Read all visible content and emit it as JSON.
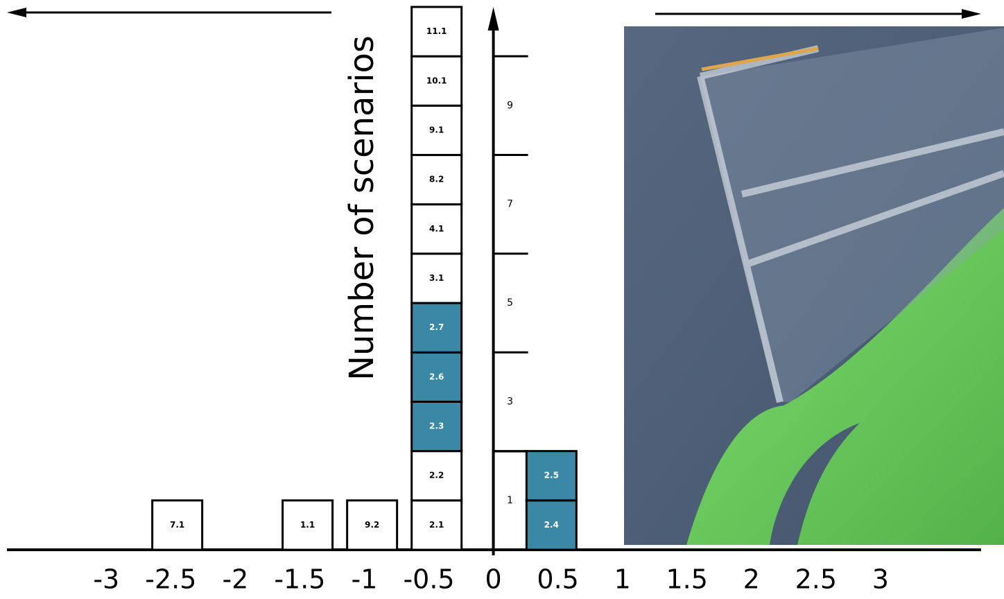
{
  "chart_data": {
    "type": "box-stack",
    "ylabel": "Number of scenarios",
    "xlim": [
      -3.77,
      3.78
    ],
    "ylim": [
      0,
      11
    ],
    "xticks": [
      -3,
      -2.5,
      -2,
      -1.5,
      -1,
      -0.5,
      0,
      0.5,
      1,
      1.5,
      2,
      2.5,
      3
    ],
    "yticks": [
      1,
      3,
      5,
      7,
      9
    ],
    "ylines": [
      2,
      4,
      6,
      8,
      10
    ],
    "color": "#ffffff",
    "highlight_color": "#3a87a6",
    "boxes": [
      {
        "label": "7.1",
        "x": -2.45,
        "level": 1,
        "highlight": false
      },
      {
        "label": "1.1",
        "x": -1.44,
        "level": 1,
        "highlight": false
      },
      {
        "label": "9.2",
        "x": -0.94,
        "level": 1,
        "highlight": false
      },
      {
        "label": "2.1",
        "x": -0.44,
        "level": 1,
        "highlight": false
      },
      {
        "label": "2.2",
        "x": -0.44,
        "level": 2,
        "highlight": false
      },
      {
        "label": "2.3",
        "x": -0.44,
        "level": 3,
        "highlight": true
      },
      {
        "label": "2.6",
        "x": -0.44,
        "level": 4,
        "highlight": true
      },
      {
        "label": "2.7",
        "x": -0.44,
        "level": 5,
        "highlight": true
      },
      {
        "label": "3.1",
        "x": -0.44,
        "level": 6,
        "highlight": false
      },
      {
        "label": "4.1",
        "x": -0.44,
        "level": 7,
        "highlight": false
      },
      {
        "label": "8.2",
        "x": -0.44,
        "level": 8,
        "highlight": false
      },
      {
        "label": "9.1",
        "x": -0.44,
        "level": 9,
        "highlight": false
      },
      {
        "label": "10.1",
        "x": -0.44,
        "level": 10,
        "highlight": false
      },
      {
        "label": "11.1",
        "x": -0.44,
        "level": 11,
        "highlight": false
      },
      {
        "label": "2.4",
        "x": 0.45,
        "level": 1,
        "highlight": true
      },
      {
        "label": "2.5",
        "x": 0.45,
        "level": 2,
        "highlight": true
      }
    ]
  }
}
